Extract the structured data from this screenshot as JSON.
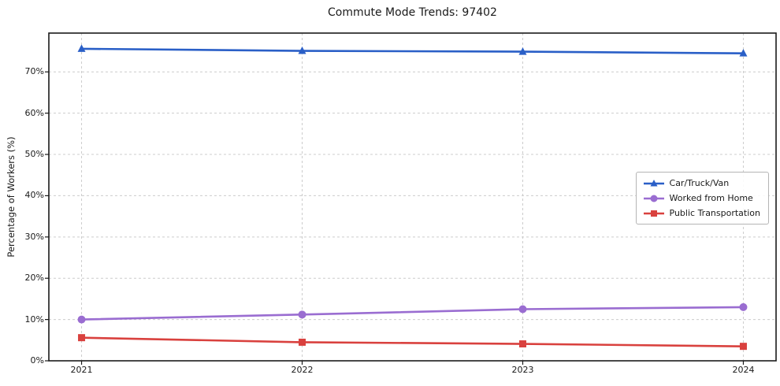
{
  "title": "Commute Mode Trends: 97402",
  "axes": {
    "ylabel": "Percentage of Workers (%)",
    "xlabel": "",
    "y_ticks": [
      "0%",
      "10%",
      "20%",
      "30%",
      "40%",
      "50%",
      "60%",
      "70%"
    ],
    "x_ticks": [
      "2021",
      "2022",
      "2023",
      "2024"
    ]
  },
  "chart_data": {
    "type": "line",
    "title": "Commute Mode Trends: 97402",
    "xlabel": "",
    "ylabel": "Percentage of Workers (%)",
    "x": [
      2021,
      2022,
      2023,
      2024
    ],
    "series": [
      {
        "name": "Car/Truck/Van",
        "values": [
          75.6,
          75.1,
          74.9,
          74.5
        ],
        "color": "#2a5fc7",
        "marker": "triangle"
      },
      {
        "name": "Worked from Home",
        "values": [
          10.0,
          11.2,
          12.5,
          13.0
        ],
        "color": "#9a6dd1",
        "marker": "circle"
      },
      {
        "name": "Public Transportation",
        "values": [
          5.6,
          4.5,
          4.1,
          3.5
        ],
        "color": "#d9413e",
        "marker": "square"
      }
    ],
    "ylim": [
      0,
      79.4
    ],
    "y_tick_step": 10,
    "grid": "dashed-both",
    "legend_position": "center-right",
    "frame": true
  }
}
